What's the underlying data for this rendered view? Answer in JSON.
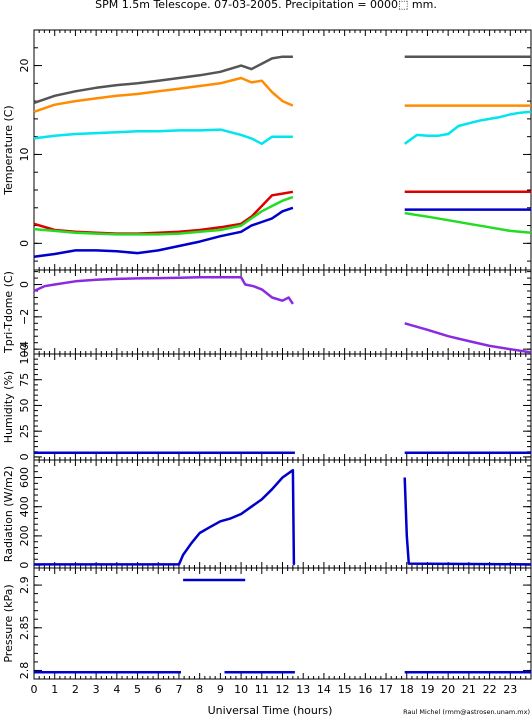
{
  "title": "SPM 1.5m Telescope. 07-03-2005. Precipitation = 0000⬚ mm.",
  "xlabel": "Universal Time (hours)",
  "credit": "Raul Michel (rmm@astrosen.unam.mx)",
  "colors": {
    "gray": "#555555",
    "orange": "#ff8c00",
    "cyan": "#00e5ee",
    "red": "#dd0000",
    "green": "#22dd22",
    "blue": "#0000cc",
    "purple": "#8a2be2"
  },
  "chart_data": [
    {
      "type": "scatter",
      "ylabel": "Temperature (C)",
      "xlim": [
        0,
        24
      ],
      "ylim": [
        -3,
        24
      ],
      "xticks": [
        0,
        1,
        2,
        3,
        4,
        5,
        6,
        7,
        8,
        9,
        10,
        11,
        12,
        13,
        14,
        15,
        16,
        17,
        18,
        19,
        20,
        21,
        22,
        23
      ],
      "yticks": [
        0,
        10,
        20
      ],
      "series": [
        {
          "color": "gray",
          "x": [
            0,
            1,
            2,
            3,
            4,
            5,
            6,
            7,
            8,
            9,
            10,
            10.5,
            11,
            11.5,
            12,
            12.5
          ],
          "y": [
            15.8,
            16.6,
            17.1,
            17.5,
            17.8,
            18.0,
            18.3,
            18.6,
            18.9,
            19.3,
            20.0,
            19.6,
            20.2,
            20.8,
            21.0,
            21.0
          ],
          "x2": [
            17.9,
            24
          ],
          "y2": [
            21.0,
            21.0
          ]
        },
        {
          "color": "orange",
          "x": [
            0,
            1,
            2,
            3,
            4,
            5,
            6,
            7,
            8,
            9,
            10,
            10.5,
            11,
            11.5,
            12,
            12.5
          ],
          "y": [
            14.8,
            15.6,
            16.0,
            16.3,
            16.6,
            16.8,
            17.1,
            17.4,
            17.7,
            18.0,
            18.6,
            18.1,
            18.3,
            17.0,
            16.0,
            15.5
          ],
          "x2": [
            17.9,
            24
          ],
          "y2": [
            15.5,
            15.5
          ]
        },
        {
          "color": "cyan",
          "x": [
            0,
            1,
            2,
            3,
            4,
            5,
            6,
            7,
            8,
            9,
            10,
            10.5,
            11,
            11.5,
            12,
            12.5
          ],
          "y": [
            11.8,
            12.1,
            12.3,
            12.4,
            12.5,
            12.6,
            12.6,
            12.7,
            12.7,
            12.8,
            12.2,
            11.8,
            11.2,
            12.0,
            12.0,
            12.0
          ],
          "x2": [
            17.9,
            18.5,
            19,
            19.5,
            20,
            20.5,
            21,
            21.5,
            22,
            22.5,
            23,
            23.5,
            24
          ],
          "y2": [
            11.2,
            12.2,
            12.1,
            12.1,
            12.3,
            13.2,
            13.5,
            13.8,
            14.0,
            14.2,
            14.5,
            14.7,
            14.8
          ]
        },
        {
          "color": "red",
          "x": [
            0,
            1,
            2,
            3,
            4,
            5,
            6,
            7,
            8,
            9,
            10,
            10.5,
            11,
            11.5,
            12,
            12.5
          ],
          "y": [
            2.2,
            1.5,
            1.3,
            1.2,
            1.1,
            1.1,
            1.2,
            1.3,
            1.5,
            1.8,
            2.2,
            3.0,
            4.2,
            5.4,
            5.6,
            5.8
          ],
          "x2": [
            17.9,
            24
          ],
          "y2": [
            5.8,
            5.8
          ]
        },
        {
          "color": "green",
          "x": [
            0,
            1,
            2,
            3,
            4,
            5,
            6,
            7,
            8,
            9,
            10,
            10.5,
            11,
            11.5,
            12,
            12.5
          ],
          "y": [
            1.6,
            1.4,
            1.2,
            1.1,
            1.0,
            1.0,
            1.0,
            1.1,
            1.3,
            1.5,
            2.0,
            2.8,
            3.6,
            4.2,
            4.8,
            5.2
          ],
          "x2": [
            17.9,
            19,
            20,
            21,
            22,
            23,
            24
          ],
          "y2": [
            3.4,
            3.0,
            2.6,
            2.2,
            1.8,
            1.4,
            1.2
          ]
        },
        {
          "color": "blue",
          "x": [
            0,
            1,
            2,
            3,
            4,
            5,
            6,
            7,
            8,
            9,
            10,
            10.5,
            11,
            11.5,
            12,
            12.5
          ],
          "y": [
            -1.5,
            -1.2,
            -0.8,
            -0.8,
            -0.9,
            -1.1,
            -0.8,
            -0.3,
            0.2,
            0.8,
            1.3,
            2.0,
            2.4,
            2.8,
            3.6,
            4.0
          ],
          "x2": [
            17.9,
            24
          ],
          "y2": [
            3.8,
            3.8
          ]
        }
      ]
    },
    {
      "type": "scatter",
      "ylabel": "Tpri-Tdome (C)",
      "xlim": [
        0,
        24
      ],
      "ylim": [
        -4.3,
        0.9
      ],
      "yticks": [
        0,
        -2,
        -4
      ],
      "series": [
        {
          "color": "purple",
          "x": [
            0,
            0.5,
            1,
            2,
            3,
            4,
            5,
            6,
            7,
            8,
            9,
            10,
            10.2,
            10.6,
            11,
            11.5,
            12,
            12.3,
            12.5
          ],
          "y": [
            -0.4,
            -0.1,
            0,
            0.2,
            0.3,
            0.35,
            0.38,
            0.4,
            0.42,
            0.45,
            0.45,
            0.45,
            0,
            -0.1,
            -0.3,
            -0.8,
            -1.0,
            -0.8,
            -1.2
          ],
          "x2": [
            17.9,
            19,
            20,
            21,
            22,
            23,
            24
          ],
          "y2": [
            -2.4,
            -2.8,
            -3.2,
            -3.5,
            -3.8,
            -4.0,
            -4.2
          ]
        }
      ]
    },
    {
      "type": "line",
      "ylabel": "Humidity (%)",
      "xlim": [
        0,
        24
      ],
      "ylim": [
        -3,
        100
      ],
      "yticks": [
        0,
        25,
        50,
        75,
        100
      ],
      "series": [
        {
          "color": "blue",
          "x": [
            0,
            12.6
          ],
          "y": [
            4,
            4
          ],
          "x2": [
            17.9,
            24
          ],
          "y2": [
            4,
            4
          ]
        }
      ]
    },
    {
      "type": "scatter",
      "ylabel": "Radiation (W/m2)",
      "xlim": [
        0,
        24
      ],
      "ylim": [
        -20,
        720
      ],
      "yticks": [
        0,
        200,
        400,
        600
      ],
      "series": [
        {
          "color": "blue",
          "x": [
            0,
            7,
            7.2,
            7.6,
            8,
            8.5,
            9,
            9.5,
            10,
            10.5,
            11,
            11.5,
            12,
            12.5,
            12.55,
            12.6
          ],
          "y": [
            5,
            5,
            70,
            150,
            220,
            260,
            300,
            320,
            350,
            400,
            450,
            520,
            600,
            650,
            8,
            5
          ],
          "x2": [
            17.9,
            18.0,
            18.1,
            24
          ],
          "y2": [
            600,
            200,
            10,
            5
          ]
        }
      ]
    },
    {
      "type": "line",
      "ylabel": "Pressure (kPa)",
      "xlim": [
        0,
        24
      ],
      "ylim": [
        2.79,
        2.92
      ],
      "yticks": [
        2.8,
        2.85,
        2.9
      ],
      "series": [
        {
          "color": "blue",
          "x": [
            0,
            7.1
          ],
          "y": [
            2.798,
            2.798
          ],
          "x2": [
            9.2,
            12.6
          ],
          "y2": [
            2.798,
            2.798
          ]
        },
        {
          "color": "blue",
          "x": [
            7.2,
            10.2
          ],
          "y": [
            2.906,
            2.906
          ]
        },
        {
          "color": "blue",
          "x": [
            17.9,
            24
          ],
          "y": [
            2.798,
            2.798
          ]
        }
      ]
    }
  ]
}
